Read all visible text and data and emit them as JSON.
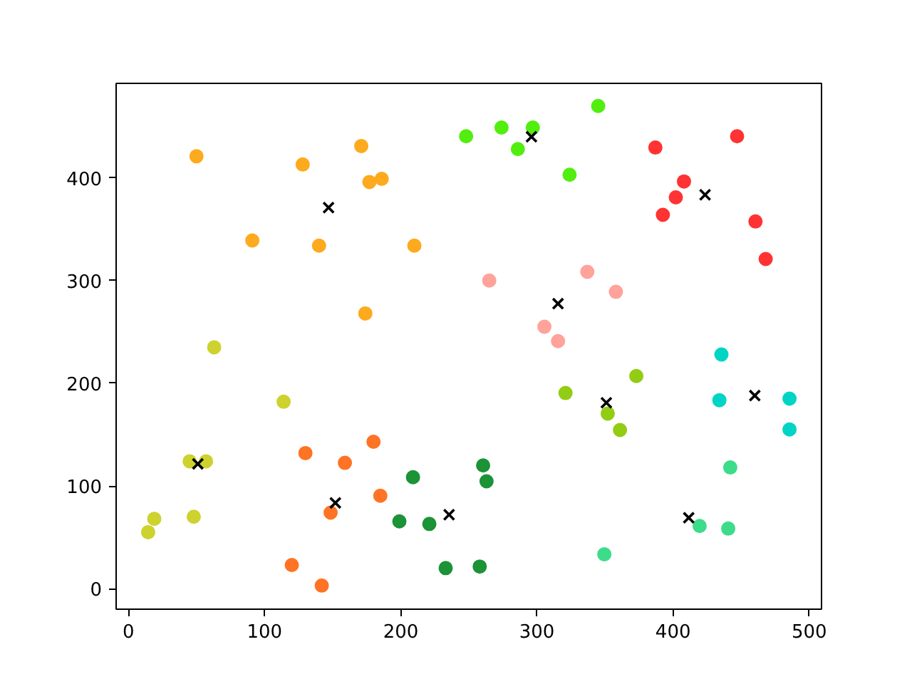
{
  "chart_data": {
    "type": "scatter",
    "marker": "circle",
    "grid": false,
    "xlim": [
      -9,
      509
    ],
    "ylim": [
      -20,
      492
    ],
    "xticks": [
      0,
      100,
      200,
      300,
      400,
      500
    ],
    "yticks": [
      0,
      100,
      200,
      300,
      400
    ],
    "series": [
      {
        "color": "#fdaa1e",
        "x": [
          50,
          128,
          171,
          177,
          186,
          91,
          140,
          210,
          174
        ],
        "values": [
          421,
          413,
          431,
          396,
          399,
          339,
          334,
          334,
          268
        ]
      },
      {
        "color": "#cdd22f",
        "x": [
          63,
          114,
          45,
          57,
          19,
          14.5,
          48
        ],
        "values": [
          235,
          182,
          124,
          124,
          68,
          55,
          70
        ]
      },
      {
        "color": "#ff7324",
        "x": [
          130,
          159,
          180,
          185,
          148.5,
          120,
          142
        ],
        "values": [
          132,
          122.5,
          143,
          90.5,
          74,
          23,
          3
        ]
      },
      {
        "color": "#1c9336",
        "x": [
          209,
          199,
          221,
          233,
          260.5,
          263,
          258
        ],
        "values": [
          108.5,
          65.5,
          63,
          20,
          120,
          104.5,
          21.5
        ]
      },
      {
        "color": "#52ee0f",
        "x": [
          248,
          274,
          297,
          286,
          345,
          324
        ],
        "values": [
          440.5,
          449,
          449,
          428,
          470,
          403
        ]
      },
      {
        "color": "#ff3333",
        "x": [
          387,
          447,
          408,
          402,
          392.5,
          460.5,
          468
        ],
        "values": [
          429.5,
          440.5,
          396.5,
          381,
          364,
          357.5,
          321
        ]
      },
      {
        "color": "#ffa39b",
        "x": [
          265,
          337,
          358,
          305.5,
          315.5
        ],
        "values": [
          300,
          308.5,
          289,
          255,
          241
        ]
      },
      {
        "color": "#00d4c4",
        "x": [
          435.5,
          434,
          485.5,
          485.5
        ],
        "values": [
          228,
          183.5,
          185,
          155
        ]
      },
      {
        "color": "#93cc14",
        "x": [
          321,
          373,
          352,
          361
        ],
        "values": [
          190.5,
          207,
          170.5,
          154.5
        ]
      },
      {
        "color": "#3ddc8a",
        "x": [
          442,
          419.5,
          440.5,
          349.5
        ],
        "values": [
          118,
          61,
          58.5,
          33.5
        ]
      },
      {
        "color": "#000000",
        "marker": "cross",
        "x": [
          147,
          51,
          152,
          235.5,
          296,
          423.5,
          315.5,
          460,
          351,
          411.5
        ],
        "values": [
          371,
          121.5,
          83.5,
          72,
          440,
          383.5,
          277.5,
          188,
          181,
          69
        ]
      }
    ]
  }
}
